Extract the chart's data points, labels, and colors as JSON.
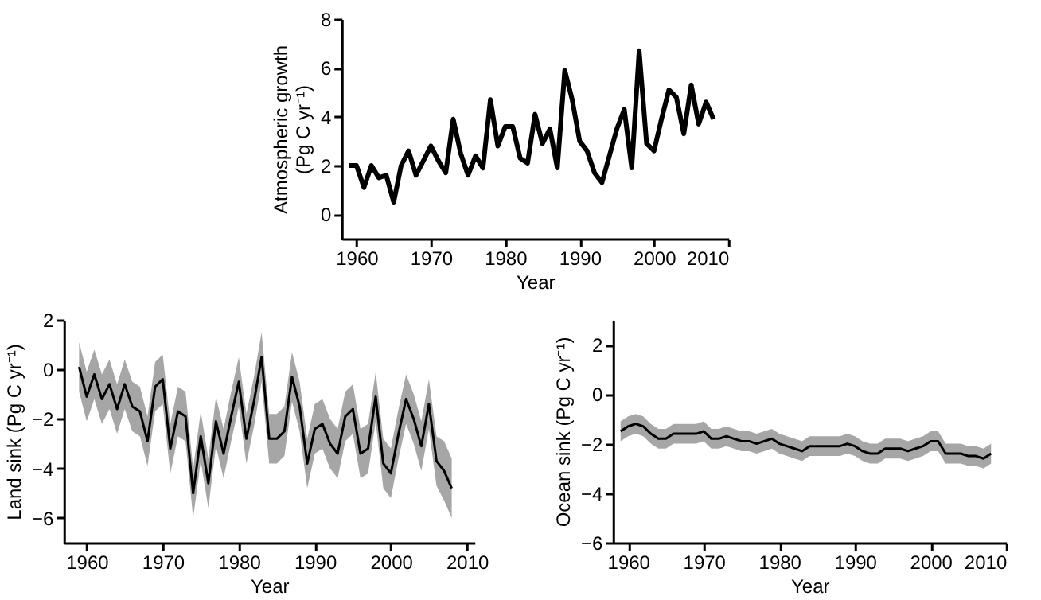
{
  "chart_data": [
    {
      "type": "line",
      "xlabel": "Year",
      "ylabel": "Atmospheric growth\n(Pg C yr⁻¹)",
      "xlim": [
        1958,
        2010
      ],
      "xticks": [
        1960,
        1970,
        1980,
        1990,
        2000,
        2010
      ],
      "ylim": [
        -1,
        8
      ],
      "yticks": [
        0,
        2,
        4,
        6,
        8
      ],
      "grid": false,
      "x": [
        1959,
        1960,
        1961,
        1962,
        1963,
        1964,
        1965,
        1966,
        1967,
        1968,
        1969,
        1970,
        1971,
        1972,
        1973,
        1974,
        1975,
        1976,
        1977,
        1978,
        1979,
        1980,
        1981,
        1982,
        1983,
        1984,
        1985,
        1986,
        1987,
        1988,
        1989,
        1990,
        1991,
        1992,
        1993,
        1994,
        1995,
        1996,
        1997,
        1998,
        1999,
        2000,
        2001,
        2002,
        2003,
        2004,
        2005,
        2006,
        2007,
        2008
      ],
      "series": [
        {
          "color": "#000000",
          "values": [
            2.0,
            2.0,
            1.1,
            2.0,
            1.5,
            1.6,
            0.5,
            2.0,
            2.6,
            1.6,
            2.2,
            2.8,
            2.2,
            1.7,
            3.9,
            2.5,
            1.6,
            2.4,
            1.9,
            4.7,
            2.8,
            3.6,
            3.6,
            2.3,
            2.1,
            4.1,
            2.9,
            3.5,
            1.9,
            5.9,
            4.7,
            3.0,
            2.6,
            1.7,
            1.3,
            2.4,
            3.5,
            4.3,
            1.9,
            6.7,
            2.9,
            2.6,
            3.9,
            5.1,
            4.8,
            3.3,
            5.3,
            3.7,
            4.6,
            3.9
          ]
        }
      ]
    },
    {
      "type": "line",
      "xlabel": "Year",
      "ylabel": "Land sink (Pg C yr⁻¹)",
      "xlim": [
        1957,
        2011
      ],
      "xticks": [
        1960,
        1970,
        1980,
        1990,
        2000,
        2010
      ],
      "ylim": [
        -7,
        2
      ],
      "yticks": [
        -6,
        -4,
        -2,
        0,
        2
      ],
      "grid": false,
      "x": [
        1959,
        1960,
        1961,
        1962,
        1963,
        1964,
        1965,
        1966,
        1967,
        1968,
        1969,
        1970,
        1971,
        1972,
        1973,
        1974,
        1975,
        1976,
        1977,
        1978,
        1979,
        1980,
        1981,
        1982,
        1983,
        1984,
        1985,
        1986,
        1987,
        1988,
        1989,
        1990,
        1991,
        1992,
        1993,
        1994,
        1995,
        1996,
        1997,
        1998,
        1999,
        2000,
        2001,
        2002,
        2003,
        2004,
        2005,
        2006,
        2007,
        2008
      ],
      "series": [
        {
          "color": "#000000",
          "values": [
            0.1,
            -1.1,
            -0.2,
            -1.2,
            -0.6,
            -1.6,
            -0.6,
            -1.5,
            -1.7,
            -2.9,
            -0.7,
            -0.4,
            -3.2,
            -1.7,
            -1.9,
            -5.0,
            -2.7,
            -4.6,
            -2.1,
            -3.4,
            -1.9,
            -0.5,
            -2.8,
            -1.3,
            0.5,
            -2.8,
            -2.8,
            -2.5,
            -0.3,
            -1.5,
            -3.8,
            -2.4,
            -2.2,
            -3.0,
            -3.4,
            -1.9,
            -1.6,
            -3.4,
            -3.2,
            -1.1,
            -3.8,
            -4.2,
            -2.6,
            -1.2,
            -2.0,
            -3.1,
            -1.4,
            -3.7,
            -4.1,
            -4.8
          ],
          "upper": [
            1.1,
            -0.1,
            0.8,
            -0.2,
            0.4,
            -0.6,
            0.4,
            -0.5,
            -0.7,
            -1.9,
            0.3,
            0.6,
            -2.2,
            -0.7,
            -0.9,
            -4.0,
            -1.7,
            -3.6,
            -1.1,
            -2.4,
            -0.9,
            0.5,
            -1.8,
            -0.3,
            1.5,
            -1.8,
            -1.8,
            -1.5,
            0.7,
            -0.5,
            -2.8,
            -1.4,
            -1.2,
            -2.0,
            -2.4,
            -0.9,
            -0.6,
            -2.4,
            -2.2,
            -0.1,
            -2.8,
            -3.2,
            -1.6,
            -0.2,
            -1.0,
            -2.1,
            -0.4,
            -2.7,
            -2.9,
            -3.6
          ],
          "lower": [
            -0.9,
            -2.1,
            -1.2,
            -2.2,
            -1.6,
            -2.6,
            -1.6,
            -2.5,
            -2.7,
            -3.9,
            -1.7,
            -1.4,
            -4.2,
            -2.7,
            -2.9,
            -6.0,
            -3.7,
            -5.6,
            -3.1,
            -4.4,
            -2.9,
            -1.5,
            -3.8,
            -2.3,
            -0.5,
            -3.8,
            -3.8,
            -3.5,
            -1.3,
            -2.5,
            -4.8,
            -3.4,
            -3.2,
            -4.0,
            -4.4,
            -2.9,
            -2.6,
            -4.4,
            -4.2,
            -2.1,
            -4.8,
            -5.2,
            -3.6,
            -2.2,
            -3.0,
            -4.1,
            -2.4,
            -4.7,
            -5.3,
            -6.0
          ]
        }
      ]
    },
    {
      "type": "line",
      "xlabel": "Year",
      "ylabel": "Ocean sink (Pg C yr⁻¹)",
      "xlim": [
        1958,
        2010
      ],
      "xticks": [
        1960,
        1970,
        1980,
        1990,
        2000,
        2010
      ],
      "ylim": [
        -6,
        3
      ],
      "yticks": [
        -6,
        -4,
        -2,
        0,
        2
      ],
      "grid": false,
      "x": [
        1959,
        1960,
        1961,
        1962,
        1963,
        1964,
        1965,
        1966,
        1967,
        1968,
        1969,
        1970,
        1971,
        1972,
        1973,
        1974,
        1975,
        1976,
        1977,
        1978,
        1979,
        1980,
        1981,
        1982,
        1983,
        1984,
        1985,
        1986,
        1987,
        1988,
        1989,
        1990,
        1991,
        1992,
        1993,
        1994,
        1995,
        1996,
        1997,
        1998,
        1999,
        2000,
        2001,
        2002,
        2003,
        2004,
        2005,
        2006,
        2007,
        2008
      ],
      "series": [
        {
          "color": "#000000",
          "values": [
            -1.5,
            -1.3,
            -1.2,
            -1.3,
            -1.6,
            -1.8,
            -1.8,
            -1.6,
            -1.6,
            -1.6,
            -1.6,
            -1.5,
            -1.8,
            -1.8,
            -1.7,
            -1.8,
            -1.9,
            -1.9,
            -2.0,
            -1.9,
            -1.8,
            -2.0,
            -2.1,
            -2.2,
            -2.3,
            -2.1,
            -2.1,
            -2.1,
            -2.1,
            -2.1,
            -2.0,
            -2.1,
            -2.3,
            -2.4,
            -2.4,
            -2.2,
            -2.2,
            -2.2,
            -2.3,
            -2.2,
            -2.1,
            -1.9,
            -1.9,
            -2.4,
            -2.4,
            -2.4,
            -2.5,
            -2.5,
            -2.6,
            -2.4
          ],
          "upper": [
            -1.1,
            -0.9,
            -0.8,
            -0.9,
            -1.2,
            -1.4,
            -1.4,
            -1.2,
            -1.2,
            -1.2,
            -1.2,
            -1.1,
            -1.4,
            -1.4,
            -1.3,
            -1.4,
            -1.5,
            -1.5,
            -1.6,
            -1.5,
            -1.4,
            -1.6,
            -1.7,
            -1.8,
            -1.9,
            -1.7,
            -1.7,
            -1.7,
            -1.7,
            -1.7,
            -1.6,
            -1.7,
            -1.9,
            -2.0,
            -2.0,
            -1.8,
            -1.8,
            -1.8,
            -1.9,
            -1.8,
            -1.7,
            -1.5,
            -1.5,
            -2.0,
            -2.0,
            -2.0,
            -2.1,
            -2.1,
            -2.2,
            -2.0
          ],
          "lower": [
            -1.9,
            -1.7,
            -1.6,
            -1.7,
            -2.0,
            -2.2,
            -2.2,
            -2.0,
            -2.0,
            -2.0,
            -2.0,
            -1.9,
            -2.2,
            -2.2,
            -2.1,
            -2.2,
            -2.3,
            -2.3,
            -2.4,
            -2.3,
            -2.2,
            -2.4,
            -2.5,
            -2.6,
            -2.7,
            -2.5,
            -2.5,
            -2.5,
            -2.5,
            -2.5,
            -2.4,
            -2.5,
            -2.7,
            -2.8,
            -2.8,
            -2.6,
            -2.6,
            -2.6,
            -2.7,
            -2.6,
            -2.5,
            -2.3,
            -2.3,
            -2.8,
            -2.8,
            -2.8,
            -2.9,
            -2.9,
            -3.0,
            -2.8
          ]
        }
      ]
    }
  ]
}
